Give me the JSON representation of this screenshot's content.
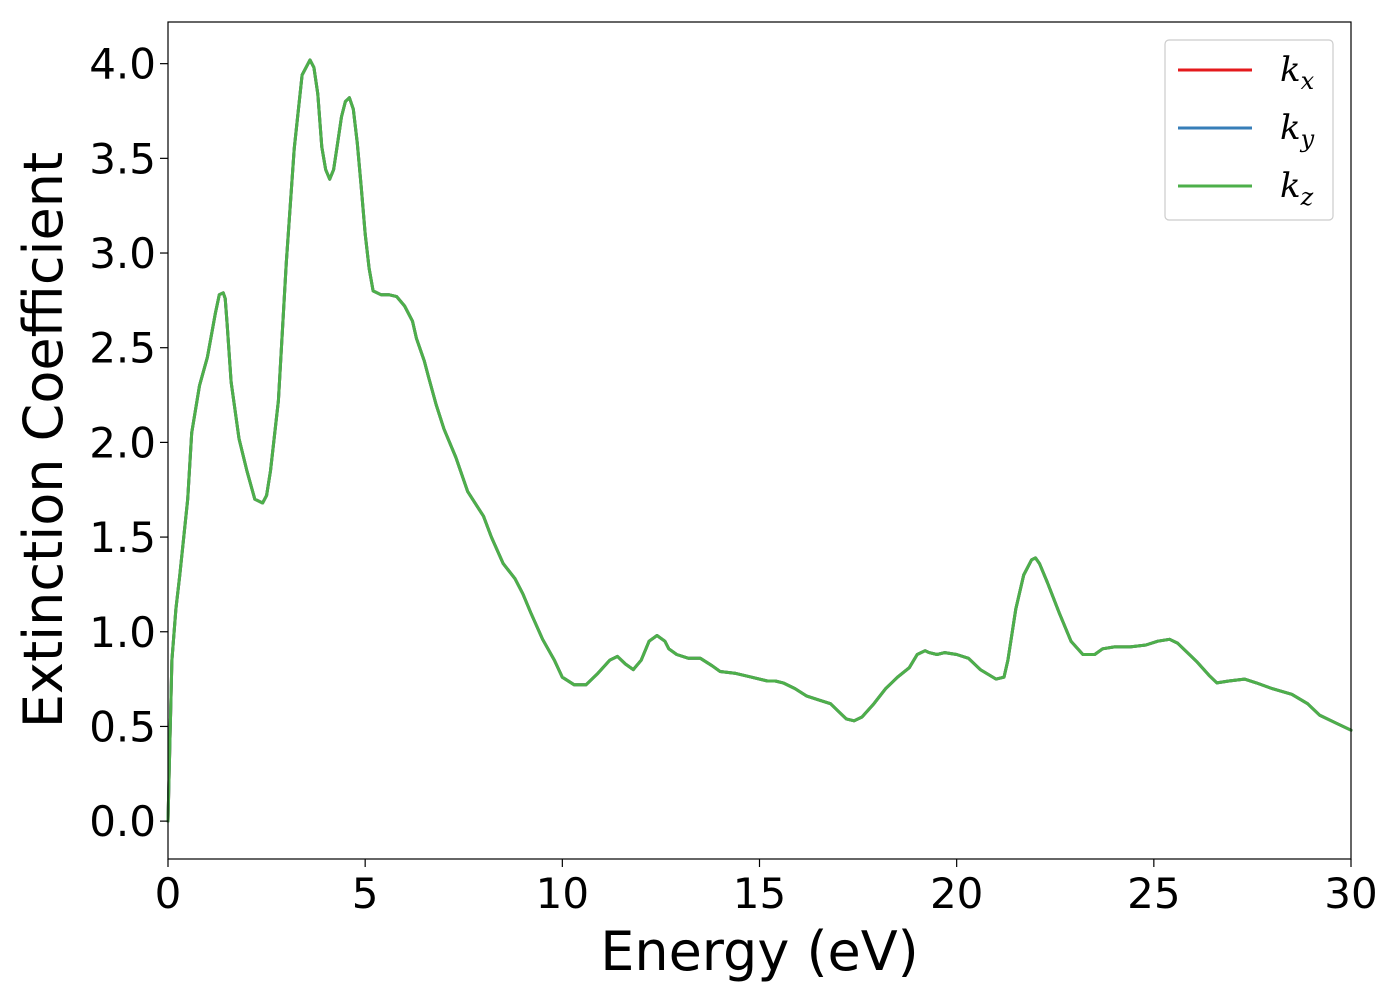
{
  "chart_data": {
    "type": "line",
    "title": "",
    "xlabel": "Energy (eV)",
    "ylabel": "Extinction Coefficient",
    "xlim": [
      0,
      30
    ],
    "ylim": [
      -0.2,
      4.22
    ],
    "xticks": [
      0,
      5,
      10,
      15,
      20,
      25,
      30
    ],
    "xtick_labels": [
      "0",
      "5",
      "10",
      "15",
      "20",
      "25",
      "30"
    ],
    "yticks": [
      0.0,
      0.5,
      1.0,
      1.5,
      2.0,
      2.5,
      3.0,
      3.5,
      4.0
    ],
    "ytick_labels": [
      "0.0",
      "0.5",
      "1.0",
      "1.5",
      "2.0",
      "2.5",
      "3.0",
      "3.5",
      "4.0"
    ],
    "grid": false,
    "legend_position": "top-right",
    "x": [
      0,
      0.1,
      0.2,
      0.3,
      0.5,
      0.6,
      0.8,
      1.0,
      1.2,
      1.3,
      1.4,
      1.45,
      1.5,
      1.6,
      1.8,
      2.0,
      2.2,
      2.4,
      2.5,
      2.6,
      2.8,
      3.0,
      3.2,
      3.4,
      3.6,
      3.7,
      3.8,
      3.85,
      3.9,
      4.0,
      4.1,
      4.2,
      4.3,
      4.4,
      4.5,
      4.6,
      4.7,
      4.8,
      4.9,
      5.0,
      5.1,
      5.2,
      5.4,
      5.6,
      5.8,
      6.0,
      6.2,
      6.3,
      6.5,
      6.6,
      6.8,
      7.0,
      7.3,
      7.6,
      8.0,
      8.2,
      8.5,
      8.8,
      9.0,
      9.2,
      9.5,
      9.8,
      10.0,
      10.3,
      10.6,
      10.9,
      11.2,
      11.4,
      11.6,
      11.8,
      12.0,
      12.2,
      12.4,
      12.6,
      12.7,
      12.9,
      13.2,
      13.5,
      13.8,
      14.0,
      14.4,
      14.8,
      15.2,
      15.4,
      15.6,
      15.9,
      16.2,
      16.5,
      16.8,
      17.0,
      17.2,
      17.4,
      17.6,
      17.9,
      18.2,
      18.5,
      18.8,
      19.0,
      19.2,
      19.3,
      19.5,
      19.7,
      20.0,
      20.3,
      20.6,
      21.0,
      21.2,
      21.3,
      21.5,
      21.7,
      21.9,
      22.0,
      22.1,
      22.3,
      22.6,
      22.9,
      23.2,
      23.5,
      23.7,
      24.0,
      24.4,
      24.8,
      25.1,
      25.4,
      25.6,
      25.8,
      26.1,
      26.4,
      26.6,
      26.9,
      27.3,
      27.6,
      28.0,
      28.5,
      28.9,
      29.2,
      29.6,
      30.0
    ],
    "series": [
      {
        "name": "k_x",
        "color": "#e41a1c",
        "values": [
          0.0,
          0.85,
          1.12,
          1.3,
          1.7,
          2.05,
          2.3,
          2.45,
          2.68,
          2.78,
          2.79,
          2.76,
          2.62,
          2.32,
          2.02,
          1.85,
          1.7,
          1.68,
          1.72,
          1.85,
          2.22,
          2.95,
          3.55,
          3.94,
          4.02,
          3.98,
          3.84,
          3.7,
          3.56,
          3.44,
          3.39,
          3.44,
          3.58,
          3.72,
          3.8,
          3.82,
          3.76,
          3.58,
          3.35,
          3.1,
          2.92,
          2.8,
          2.78,
          2.78,
          2.77,
          2.72,
          2.64,
          2.55,
          2.43,
          2.35,
          2.2,
          2.07,
          1.92,
          1.74,
          1.61,
          1.5,
          1.36,
          1.28,
          1.2,
          1.1,
          0.96,
          0.85,
          0.76,
          0.72,
          0.72,
          0.78,
          0.85,
          0.87,
          0.83,
          0.8,
          0.85,
          0.95,
          0.98,
          0.95,
          0.91,
          0.88,
          0.86,
          0.86,
          0.82,
          0.79,
          0.78,
          0.76,
          0.74,
          0.74,
          0.73,
          0.7,
          0.66,
          0.64,
          0.62,
          0.58,
          0.54,
          0.53,
          0.55,
          0.62,
          0.7,
          0.76,
          0.81,
          0.88,
          0.9,
          0.89,
          0.88,
          0.89,
          0.88,
          0.86,
          0.8,
          0.75,
          0.76,
          0.85,
          1.12,
          1.3,
          1.38,
          1.39,
          1.36,
          1.26,
          1.1,
          0.95,
          0.88,
          0.88,
          0.91,
          0.92,
          0.92,
          0.93,
          0.95,
          0.96,
          0.94,
          0.9,
          0.84,
          0.77,
          0.73,
          0.74,
          0.75,
          0.73,
          0.7,
          0.67,
          0.62,
          0.56,
          0.52,
          0.48
        ]
      },
      {
        "name": "k_y",
        "color": "#377eb8",
        "values": [
          0.0,
          0.85,
          1.12,
          1.3,
          1.7,
          2.05,
          2.3,
          2.45,
          2.68,
          2.78,
          2.79,
          2.76,
          2.62,
          2.32,
          2.02,
          1.85,
          1.7,
          1.68,
          1.72,
          1.85,
          2.22,
          2.95,
          3.55,
          3.94,
          4.02,
          3.98,
          3.84,
          3.7,
          3.56,
          3.44,
          3.39,
          3.44,
          3.58,
          3.72,
          3.8,
          3.82,
          3.76,
          3.58,
          3.35,
          3.1,
          2.92,
          2.8,
          2.78,
          2.78,
          2.77,
          2.72,
          2.64,
          2.55,
          2.43,
          2.35,
          2.2,
          2.07,
          1.92,
          1.74,
          1.61,
          1.5,
          1.36,
          1.28,
          1.2,
          1.1,
          0.96,
          0.85,
          0.76,
          0.72,
          0.72,
          0.78,
          0.85,
          0.87,
          0.83,
          0.8,
          0.85,
          0.95,
          0.98,
          0.95,
          0.91,
          0.88,
          0.86,
          0.86,
          0.82,
          0.79,
          0.78,
          0.76,
          0.74,
          0.74,
          0.73,
          0.7,
          0.66,
          0.64,
          0.62,
          0.58,
          0.54,
          0.53,
          0.55,
          0.62,
          0.7,
          0.76,
          0.81,
          0.88,
          0.9,
          0.89,
          0.88,
          0.89,
          0.88,
          0.86,
          0.8,
          0.75,
          0.76,
          0.85,
          1.12,
          1.3,
          1.38,
          1.39,
          1.36,
          1.26,
          1.1,
          0.95,
          0.88,
          0.88,
          0.91,
          0.92,
          0.92,
          0.93,
          0.95,
          0.96,
          0.94,
          0.9,
          0.84,
          0.77,
          0.73,
          0.74,
          0.75,
          0.73,
          0.7,
          0.67,
          0.62,
          0.56,
          0.52,
          0.48
        ]
      },
      {
        "name": "k_z",
        "color": "#4daf4a",
        "values": [
          0.0,
          0.85,
          1.12,
          1.3,
          1.7,
          2.05,
          2.3,
          2.45,
          2.68,
          2.78,
          2.79,
          2.76,
          2.62,
          2.32,
          2.02,
          1.85,
          1.7,
          1.68,
          1.72,
          1.85,
          2.22,
          2.95,
          3.55,
          3.94,
          4.02,
          3.98,
          3.84,
          3.7,
          3.56,
          3.44,
          3.39,
          3.44,
          3.58,
          3.72,
          3.8,
          3.82,
          3.76,
          3.58,
          3.35,
          3.1,
          2.92,
          2.8,
          2.78,
          2.78,
          2.77,
          2.72,
          2.64,
          2.55,
          2.43,
          2.35,
          2.2,
          2.07,
          1.92,
          1.74,
          1.61,
          1.5,
          1.36,
          1.28,
          1.2,
          1.1,
          0.96,
          0.85,
          0.76,
          0.72,
          0.72,
          0.78,
          0.85,
          0.87,
          0.83,
          0.8,
          0.85,
          0.95,
          0.98,
          0.95,
          0.91,
          0.88,
          0.86,
          0.86,
          0.82,
          0.79,
          0.78,
          0.76,
          0.74,
          0.74,
          0.73,
          0.7,
          0.66,
          0.64,
          0.62,
          0.58,
          0.54,
          0.53,
          0.55,
          0.62,
          0.7,
          0.76,
          0.81,
          0.88,
          0.9,
          0.89,
          0.88,
          0.89,
          0.88,
          0.86,
          0.8,
          0.75,
          0.76,
          0.85,
          1.12,
          1.3,
          1.38,
          1.39,
          1.36,
          1.26,
          1.1,
          0.95,
          0.88,
          0.88,
          0.91,
          0.92,
          0.92,
          0.93,
          0.95,
          0.96,
          0.94,
          0.9,
          0.84,
          0.77,
          0.73,
          0.74,
          0.75,
          0.73,
          0.7,
          0.67,
          0.62,
          0.56,
          0.52,
          0.48
        ]
      }
    ],
    "legend": [
      {
        "base": "k",
        "sub": "x",
        "color": "#e41a1c"
      },
      {
        "base": "k",
        "sub": "y",
        "color": "#377eb8"
      },
      {
        "base": "k",
        "sub": "z",
        "color": "#4daf4a"
      }
    ]
  }
}
